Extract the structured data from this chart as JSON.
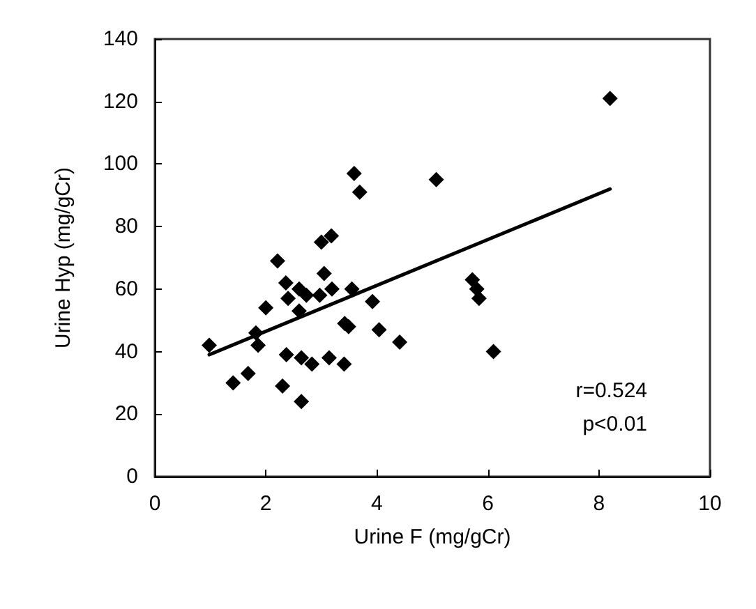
{
  "chart_data": {
    "type": "scatter",
    "xlabel": "Urine F (mg/gCr)",
    "ylabel": "Urine Hyp (mg/gCr)",
    "xlim": [
      0,
      10
    ],
    "xticks": [
      0,
      2,
      4,
      6,
      8,
      10
    ],
    "ylim": [
      0,
      140
    ],
    "yticks": [
      0,
      20,
      40,
      60,
      80,
      100,
      120,
      140
    ],
    "grid": false,
    "marker": "diamond",
    "annotations": [
      "r=0.524",
      "p<0.01"
    ],
    "series": [
      {
        "color": "#000000",
        "x": [
          3.59,
          3.69,
          3.18,
          3.0,
          2.21,
          3.05,
          2.36,
          2.6,
          2.73,
          2.97,
          3.19,
          2.4,
          3.55,
          3.92,
          2.0,
          2.6,
          3.42,
          3.49,
          4.04,
          4.41,
          1.82,
          1.86,
          0.98,
          2.37,
          2.64,
          2.83,
          3.14,
          3.41,
          1.68,
          1.41,
          2.3,
          2.64,
          8.2,
          5.07,
          5.72,
          5.8,
          5.84,
          6.1
        ],
        "values": [
          97,
          91,
          77,
          75,
          69,
          65,
          62,
          60,
          58,
          58,
          60,
          57,
          60,
          56,
          54,
          53,
          49,
          48,
          47,
          43,
          46,
          42,
          42,
          39,
          38,
          36,
          38,
          36,
          33,
          30,
          29,
          24,
          121,
          95,
          63,
          60,
          57,
          40
        ]
      },
      {
        "type": "line",
        "color": "#000000",
        "marker": "none",
        "line_style": "solid",
        "x": [
          0.98,
          8.2
        ],
        "values": [
          39,
          92
        ]
      }
    ]
  }
}
